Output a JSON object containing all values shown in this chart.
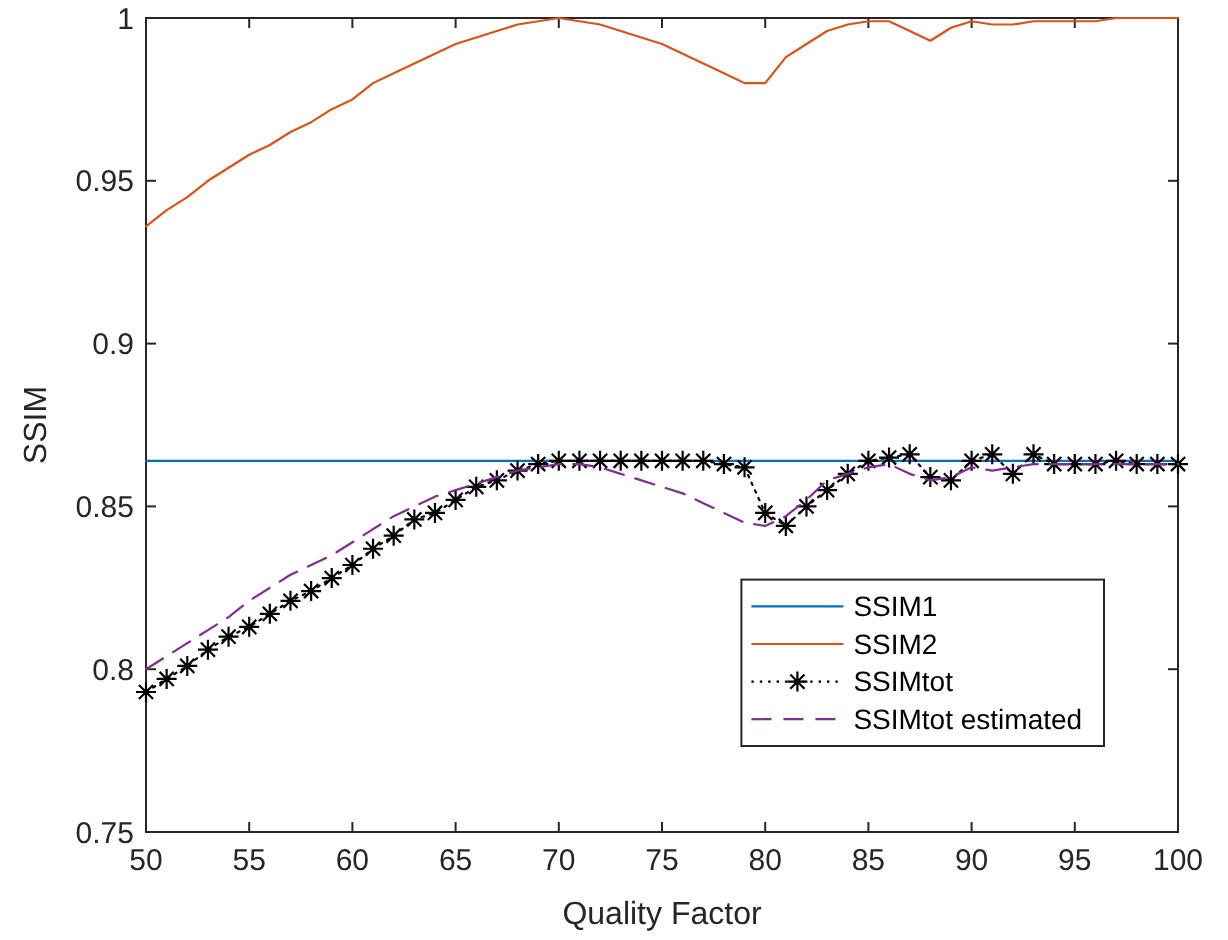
{
  "chart_data": {
    "type": "line",
    "xlabel": "Quality Factor",
    "ylabel": "SSIM",
    "x": [
      50,
      51,
      52,
      53,
      54,
      55,
      56,
      57,
      58,
      59,
      60,
      61,
      62,
      63,
      64,
      65,
      66,
      67,
      68,
      69,
      70,
      71,
      72,
      73,
      74,
      75,
      76,
      77,
      78,
      79,
      80,
      81,
      82,
      83,
      84,
      85,
      86,
      87,
      88,
      89,
      90,
      91,
      92,
      93,
      94,
      95,
      96,
      97,
      98,
      99,
      100
    ],
    "xlim": [
      50,
      100
    ],
    "xticks": [
      50,
      55,
      60,
      65,
      70,
      75,
      80,
      85,
      90,
      95,
      100
    ],
    "ylim": [
      0.75,
      1
    ],
    "yticks": [
      0.75,
      0.8,
      0.85,
      0.9,
      0.95,
      1
    ],
    "legend": "bottom right",
    "series": [
      {
        "name": "SSIM1",
        "color": "#0072bd",
        "marker": "none",
        "line_style": "solid",
        "x": [
          50,
          100
        ],
        "values": [
          0.864,
          0.864
        ]
      },
      {
        "name": "SSIM2",
        "color": "#d95319",
        "marker": "none",
        "line_style": "solid",
        "values": [
          0.936,
          0.941,
          0.945,
          0.95,
          0.954,
          0.958,
          0.961,
          0.965,
          0.968,
          0.972,
          0.975,
          0.98,
          0.983,
          0.986,
          0.989,
          0.992,
          0.994,
          0.996,
          0.998,
          0.999,
          1.0,
          0.999,
          0.998,
          0.996,
          0.994,
          0.992,
          0.989,
          0.986,
          0.983,
          0.98,
          0.98,
          0.988,
          0.992,
          0.996,
          0.998,
          0.999,
          0.999,
          0.996,
          0.993,
          0.997,
          0.999,
          0.998,
          0.998,
          0.999,
          0.999,
          0.999,
          0.999,
          1.0,
          1.0,
          1.0,
          1.0
        ]
      },
      {
        "name": "SSIMtot",
        "color": "#000000",
        "marker": "cross",
        "line_style": "dotted",
        "values": [
          0.793,
          0.797,
          0.801,
          0.806,
          0.81,
          0.813,
          0.817,
          0.821,
          0.824,
          0.828,
          0.832,
          0.837,
          0.841,
          0.846,
          0.848,
          0.852,
          0.856,
          0.858,
          0.861,
          0.863,
          0.864,
          0.864,
          0.864,
          0.864,
          0.864,
          0.864,
          0.864,
          0.864,
          0.863,
          0.862,
          0.848,
          0.844,
          0.85,
          0.855,
          0.86,
          0.864,
          0.865,
          0.866,
          0.859,
          0.858,
          0.864,
          0.866,
          0.86,
          0.866,
          0.863,
          0.863,
          0.863,
          0.864,
          0.863,
          0.863,
          0.863
        ]
      },
      {
        "name": "SSIMtot estimated",
        "color": "#7e2f8e",
        "marker": "none",
        "line_style": "dashed",
        "values": [
          0.8,
          0.804,
          0.808,
          0.812,
          0.816,
          0.821,
          0.825,
          0.829,
          0.832,
          0.835,
          0.839,
          0.843,
          0.847,
          0.85,
          0.853,
          0.855,
          0.857,
          0.859,
          0.861,
          0.862,
          0.863,
          0.863,
          0.862,
          0.86,
          0.858,
          0.856,
          0.854,
          0.851,
          0.848,
          0.845,
          0.844,
          0.847,
          0.852,
          0.858,
          0.86,
          0.862,
          0.863,
          0.86,
          0.858,
          0.859,
          0.862,
          0.861,
          0.862,
          0.863,
          0.863,
          0.863,
          0.863,
          0.863,
          0.863,
          0.863,
          0.863
        ]
      }
    ]
  }
}
